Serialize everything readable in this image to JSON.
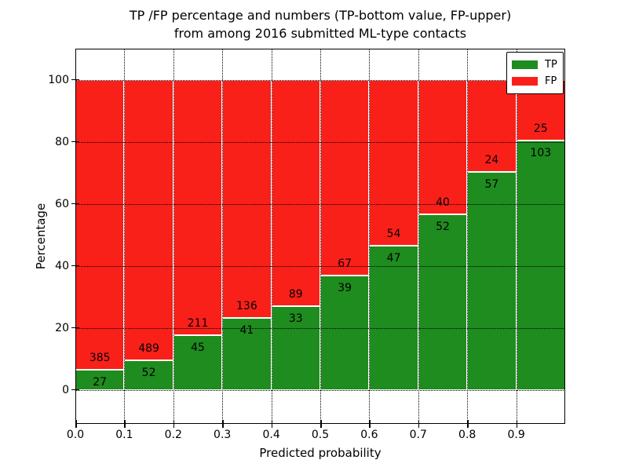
{
  "figure": {
    "title_line1": "TP /FP percentage and numbers (TP-bottom value, FP-upper)",
    "title_line2": "from among 2016 submitted ML-type contacts",
    "xlabel": "Predicted probability",
    "ylabel": "Percentage"
  },
  "colors": {
    "tp_green": "#1e8c1e",
    "fp_red": "#fa201a",
    "grid": "#000000",
    "background": "#ffffff"
  },
  "legend": {
    "position": "upper right",
    "entries": [
      {
        "label": "TP",
        "color": "#1e8c1e"
      },
      {
        "label": "FP",
        "color": "#fa201a"
      }
    ]
  },
  "chart_data": {
    "type": "bar",
    "stacked": true,
    "normalized_to_percent": true,
    "title": "TP /FP percentage and numbers (TP-bottom value, FP-upper) from among 2016 submitted ML-type contacts",
    "xlabel": "Predicted probability",
    "ylabel": "Percentage",
    "grid": true,
    "legend_position": "upper right",
    "xlim": [
      0.0,
      1.0
    ],
    "ylim": [
      -11,
      110
    ],
    "bin_width": 0.1,
    "x_tick_labels": [
      "0.0",
      "0.1",
      "0.2",
      "0.3",
      "0.4",
      "0.5",
      "0.6",
      "0.7",
      "0.8",
      "0.9"
    ],
    "y_ticks": [
      0,
      20,
      40,
      60,
      80,
      100
    ],
    "y_tick_labels": [
      "0",
      "20",
      "40",
      "60",
      "80",
      "100"
    ],
    "categories": [
      "0.0",
      "0.1",
      "0.2",
      "0.3",
      "0.4",
      "0.5",
      "0.6",
      "0.7",
      "0.8",
      "0.9"
    ],
    "series": [
      {
        "name": "TP",
        "color": "#1e8c1e",
        "counts": [
          27,
          52,
          45,
          41,
          33,
          39,
          47,
          52,
          57,
          103
        ]
      },
      {
        "name": "FP",
        "color": "#fa201a",
        "counts": [
          385,
          489,
          211,
          136,
          89,
          67,
          54,
          40,
          24,
          25
        ]
      }
    ],
    "tp_percent": [
      6.55,
      9.61,
      17.58,
      23.16,
      27.05,
      36.79,
      46.53,
      56.52,
      70.37,
      80.47
    ]
  }
}
